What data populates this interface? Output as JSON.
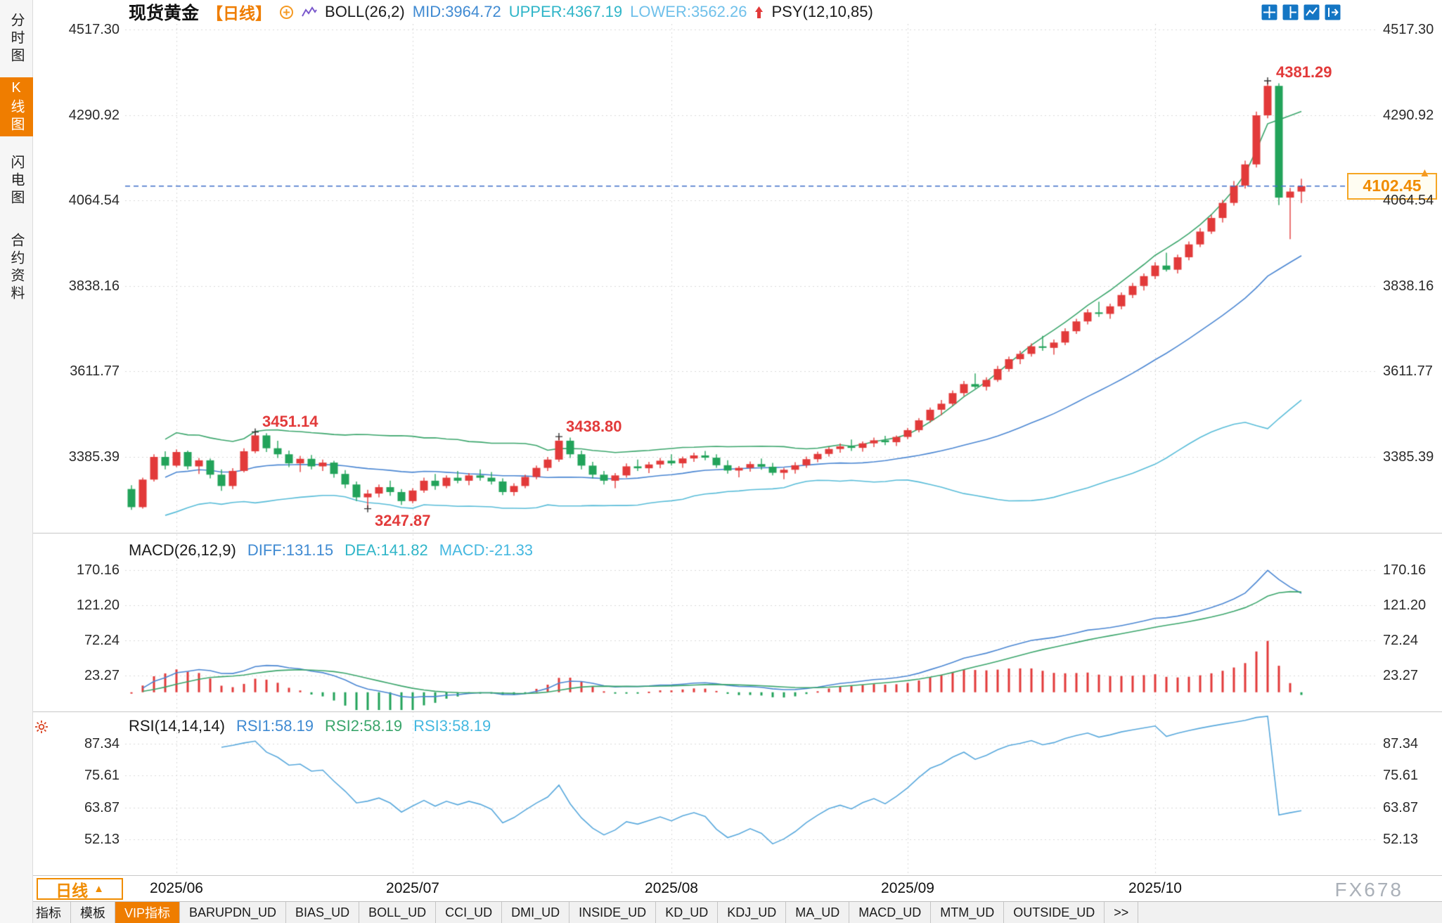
{
  "sidebar": {
    "items": [
      {
        "label": "分时图",
        "selected": false
      },
      {
        "label": "K线图",
        "selected": true
      },
      {
        "label": "闪电图",
        "selected": false
      },
      {
        "label": "合约资料",
        "selected": false
      }
    ]
  },
  "header": {
    "title": "现货黄金",
    "period_tag": "【日线】",
    "boll": "BOLL(26,2)",
    "mid": "MID:3964.72",
    "upper": "UPPER:4367.19",
    "lower": "LOWER:3562.26",
    "psy": "PSY(12,10,85)"
  },
  "macd_panel": {
    "label": "MACD(26,12,9)",
    "diff": "DIFF:131.15",
    "dea": "DEA:141.82",
    "macd": "MACD:-21.33"
  },
  "rsi_panel": {
    "label": "RSI(14,14,14)",
    "rsi1": "RSI1:58.19",
    "rsi2": "RSI2:58.19",
    "rsi3": "RSI3:58.19"
  },
  "footer": {
    "period_label": "日线",
    "period_arrow": "▲",
    "watermark": "FX678"
  },
  "tabs": [
    {
      "label": "指标",
      "selected": false
    },
    {
      "label": "模板",
      "selected": false
    },
    {
      "label": "VIP指标",
      "selected": true
    },
    {
      "label": "BARUPDN_UD",
      "selected": false
    },
    {
      "label": "BIAS_UD",
      "selected": false
    },
    {
      "label": "BOLL_UD",
      "selected": false
    },
    {
      "label": "CCI_UD",
      "selected": false
    },
    {
      "label": "DMI_UD",
      "selected": false
    },
    {
      "label": "INSIDE_UD",
      "selected": false
    },
    {
      "label": "KD_UD",
      "selected": false
    },
    {
      "label": "KDJ_UD",
      "selected": false
    },
    {
      "label": "MA_UD",
      "selected": false
    },
    {
      "label": "MACD_UD",
      "selected": false
    },
    {
      "label": "MTM_UD",
      "selected": false
    },
    {
      "label": "OUTSIDE_UD",
      "selected": false
    },
    {
      "label": ">>",
      "selected": false
    }
  ],
  "chart_data": {
    "type": "candlestick",
    "title": "现货黄金 日线",
    "price_axis": [
      4517.3,
      4290.92,
      4064.54,
      3838.16,
      3611.77,
      3385.39
    ],
    "macd_axis": [
      170.16,
      121.2,
      72.24,
      23.27
    ],
    "rsi_axis": [
      87.34,
      75.61,
      63.87,
      52.13
    ],
    "x_ticks": [
      {
        "label": "2025/06",
        "index": 4
      },
      {
        "label": "2025/07",
        "index": 25
      },
      {
        "label": "2025/08",
        "index": 48
      },
      {
        "label": "2025/09",
        "index": 69
      },
      {
        "label": "2025/10",
        "index": 91
      }
    ],
    "current_price": 4102.45,
    "marks": [
      {
        "value": 3451.14,
        "index": 11,
        "type": "high"
      },
      {
        "value": 3247.87,
        "index": 21,
        "type": "low"
      },
      {
        "value": 3438.8,
        "index": 38,
        "type": "high"
      },
      {
        "value": 4381.29,
        "index": 101,
        "type": "peak"
      }
    ],
    "indicators": {
      "boll": {
        "period": 26,
        "dev": 2
      },
      "macd": {
        "fast": 12,
        "slow": 26,
        "signal": 9
      },
      "rsi": {
        "period": 14
      }
    },
    "candles": [
      [
        3300,
        3310,
        3245,
        3252
      ],
      [
        3252,
        3330,
        3248,
        3325
      ],
      [
        3325,
        3392,
        3320,
        3385
      ],
      [
        3385,
        3400,
        3352,
        3362
      ],
      [
        3362,
        3405,
        3358,
        3398
      ],
      [
        3398,
        3402,
        3352,
        3360
      ],
      [
        3360,
        3382,
        3340,
        3376
      ],
      [
        3376,
        3381,
        3328,
        3338
      ],
      [
        3338,
        3352,
        3295,
        3308
      ],
      [
        3308,
        3355,
        3300,
        3348
      ],
      [
        3348,
        3408,
        3344,
        3400
      ],
      [
        3400,
        3451.14,
        3395,
        3442
      ],
      [
        3442,
        3448,
        3398,
        3408
      ],
      [
        3408,
        3428,
        3382,
        3392
      ],
      [
        3392,
        3402,
        3358,
        3368
      ],
      [
        3368,
        3388,
        3345,
        3380
      ],
      [
        3380,
        3390,
        3352,
        3360
      ],
      [
        3360,
        3378,
        3348,
        3370
      ],
      [
        3370,
        3375,
        3330,
        3340
      ],
      [
        3340,
        3350,
        3302,
        3312
      ],
      [
        3312,
        3320,
        3268,
        3278
      ],
      [
        3278,
        3298,
        3247.87,
        3288
      ],
      [
        3288,
        3312,
        3278,
        3305
      ],
      [
        3305,
        3322,
        3282,
        3292
      ],
      [
        3292,
        3300,
        3258,
        3268
      ],
      [
        3268,
        3302,
        3262,
        3296
      ],
      [
        3296,
        3330,
        3290,
        3322
      ],
      [
        3322,
        3340,
        3298,
        3308
      ],
      [
        3308,
        3336,
        3302,
        3330
      ],
      [
        3330,
        3348,
        3315,
        3322
      ],
      [
        3322,
        3342,
        3310,
        3336
      ],
      [
        3336,
        3352,
        3322,
        3330
      ],
      [
        3330,
        3345,
        3312,
        3320
      ],
      [
        3320,
        3328,
        3284,
        3292
      ],
      [
        3292,
        3315,
        3282,
        3308
      ],
      [
        3308,
        3338,
        3302,
        3332
      ],
      [
        3332,
        3362,
        3326,
        3356
      ],
      [
        3356,
        3385,
        3348,
        3378
      ],
      [
        3378,
        3438.8,
        3372,
        3428
      ],
      [
        3428,
        3436,
        3382,
        3392
      ],
      [
        3392,
        3402,
        3352,
        3362
      ],
      [
        3362,
        3372,
        3328,
        3338
      ],
      [
        3338,
        3348,
        3312,
        3322
      ],
      [
        3322,
        3342,
        3302,
        3336
      ],
      [
        3336,
        3368,
        3330,
        3360
      ],
      [
        3360,
        3378,
        3348,
        3355
      ],
      [
        3355,
        3372,
        3342,
        3365
      ],
      [
        3365,
        3382,
        3355,
        3375
      ],
      [
        3375,
        3392,
        3362,
        3368
      ],
      [
        3368,
        3386,
        3356,
        3381
      ],
      [
        3381,
        3396,
        3372,
        3389
      ],
      [
        3389,
        3401,
        3376,
        3383
      ],
      [
        3383,
        3392,
        3356,
        3363
      ],
      [
        3363,
        3376,
        3341,
        3349
      ],
      [
        3349,
        3361,
        3331,
        3356
      ],
      [
        3356,
        3373,
        3346,
        3366
      ],
      [
        3366,
        3381,
        3351,
        3359
      ],
      [
        3359,
        3369,
        3336,
        3343
      ],
      [
        3343,
        3356,
        3326,
        3351
      ],
      [
        3351,
        3371,
        3341,
        3363
      ],
      [
        3363,
        3386,
        3356,
        3379
      ],
      [
        3379,
        3399,
        3371,
        3393
      ],
      [
        3393,
        3411,
        3386,
        3406
      ],
      [
        3406,
        3421,
        3396,
        3413
      ],
      [
        3413,
        3431,
        3401,
        3409
      ],
      [
        3409,
        3426,
        3399,
        3421
      ],
      [
        3421,
        3436,
        3411,
        3429
      ],
      [
        3429,
        3441,
        3416,
        3424
      ],
      [
        3424,
        3442,
        3414,
        3438
      ],
      [
        3438,
        3462,
        3432,
        3456
      ],
      [
        3456,
        3488,
        3450,
        3482
      ],
      [
        3482,
        3516,
        3476,
        3510
      ],
      [
        3510,
        3536,
        3496,
        3526
      ],
      [
        3526,
        3561,
        3521,
        3554
      ],
      [
        3554,
        3586,
        3546,
        3578
      ],
      [
        3578,
        3606,
        3566,
        3571
      ],
      [
        3571,
        3596,
        3561,
        3589
      ],
      [
        3589,
        3626,
        3584,
        3618
      ],
      [
        3618,
        3651,
        3611,
        3644
      ],
      [
        3644,
        3666,
        3631,
        3658
      ],
      [
        3658,
        3686,
        3651,
        3678
      ],
      [
        3678,
        3706,
        3666,
        3674
      ],
      [
        3674,
        3696,
        3656,
        3688
      ],
      [
        3688,
        3726,
        3681,
        3718
      ],
      [
        3718,
        3751,
        3711,
        3744
      ],
      [
        3744,
        3776,
        3736,
        3768
      ],
      [
        3768,
        3796,
        3756,
        3764
      ],
      [
        3764,
        3791,
        3751,
        3784
      ],
      [
        3784,
        3821,
        3776,
        3814
      ],
      [
        3814,
        3846,
        3806,
        3838
      ],
      [
        3838,
        3871,
        3826,
        3864
      ],
      [
        3864,
        3901,
        3856,
        3892
      ],
      [
        3892,
        3926,
        3876,
        3881
      ],
      [
        3881,
        3921,
        3871,
        3914
      ],
      [
        3914,
        3956,
        3906,
        3948
      ],
      [
        3948,
        3991,
        3941,
        3982
      ],
      [
        3982,
        4026,
        3976,
        4018
      ],
      [
        4018,
        4066,
        4006,
        4058
      ],
      [
        4058,
        4116,
        4051,
        4104
      ],
      [
        4104,
        4170,
        4096,
        4160
      ],
      [
        4160,
        4300,
        4152,
        4290
      ],
      [
        4290,
        4381.29,
        4282,
        4368
      ],
      [
        4368,
        4375,
        4052,
        4072
      ],
      [
        4072,
        4098,
        3962,
        4088
      ],
      [
        4088,
        4122,
        4058,
        4102.45
      ]
    ]
  }
}
